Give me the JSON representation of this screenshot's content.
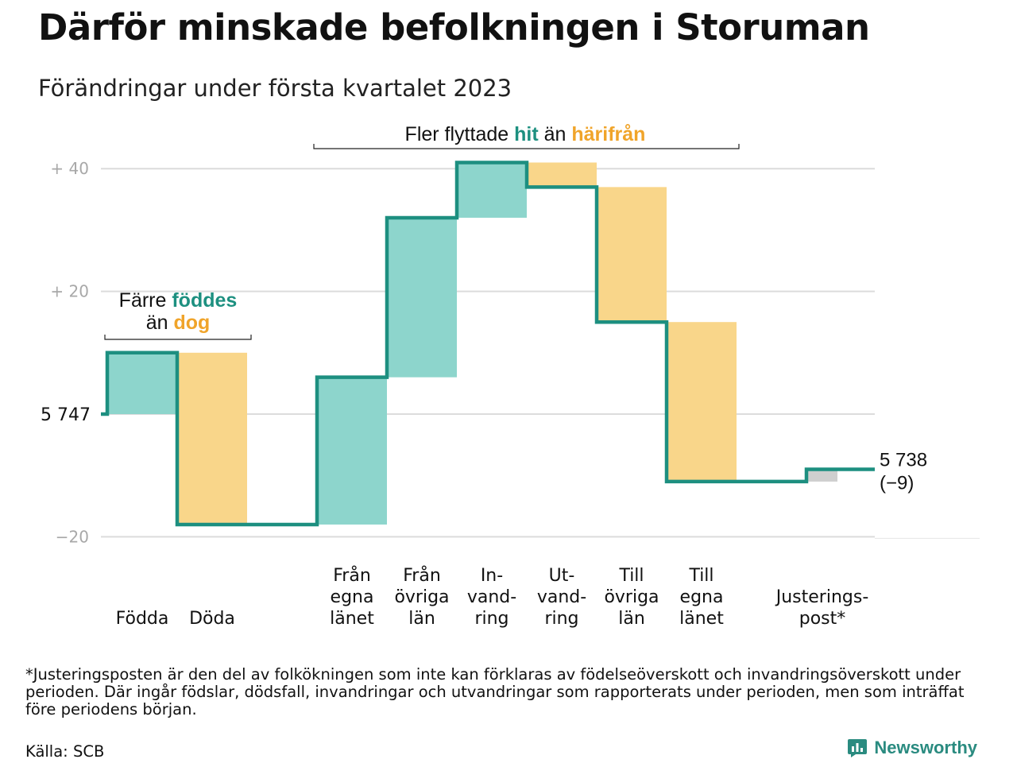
{
  "title": "Därför minskade befolkningen i Storuman",
  "subtitle": "Förändringar under första kvartalet 2023",
  "colors": {
    "increase": "#8dd5cc",
    "decrease": "#f9d68a",
    "adjustment": "#cfcfcf",
    "line": "#1d8f80",
    "accent_teal": "#1d9080",
    "accent_orange": "#f0a42a",
    "grid": "#dcdcdc",
    "tick": "#a8a8a8"
  },
  "annotations": {
    "births": {
      "line1": "Färre",
      "teal": "föddes",
      "line2": "än",
      "orange": "dog"
    },
    "migration": {
      "before": "Fler flyttade",
      "teal": "hit",
      "middle": "än",
      "orange": "härifrån"
    }
  },
  "footnote": "*Justeringsposten är den del av folkökningen som inte kan förklaras av födelseöverskott och invandringsöverskott under perioden. Där ingår födslar, dödsfall, invandringar och utvandringar som rapporterats under perioden, men som inträffat före periodens början.",
  "source": "Källa: SCB",
  "brand": "Newsworthy",
  "chart_data": {
    "type": "waterfall",
    "start": {
      "value": 5747,
      "label": "5 747"
    },
    "end": {
      "value": 5738,
      "label": "5 738",
      "change_label": "(−9)"
    },
    "y_ticks": [
      {
        "value": 40,
        "label": "+ 40"
      },
      {
        "value": 20,
        "label": "+ 20"
      },
      {
        "value": 0,
        "label": "5 747"
      },
      {
        "value": -20,
        "label": "−20"
      }
    ],
    "ylim": [
      -20,
      40
    ],
    "steps": [
      {
        "label": [
          "Födda"
        ],
        "change": 10,
        "kind": "increase"
      },
      {
        "label": [
          "Döda"
        ],
        "change": -28,
        "kind": "decrease"
      },
      {
        "label": [],
        "change": 0,
        "kind": "gap"
      },
      {
        "label": [
          "Från",
          "egna",
          "länet"
        ],
        "change": 24,
        "kind": "increase"
      },
      {
        "label": [
          "Från",
          "övriga",
          "län"
        ],
        "change": 26,
        "kind": "increase"
      },
      {
        "label": [
          "In-",
          "vand-",
          "ring"
        ],
        "change": 9,
        "kind": "increase"
      },
      {
        "label": [
          "Ut-",
          "vand-",
          "ring"
        ],
        "change": -4,
        "kind": "decrease"
      },
      {
        "label": [
          "Till",
          "övriga",
          "län"
        ],
        "change": -22,
        "kind": "decrease"
      },
      {
        "label": [
          "Till",
          "egna",
          "länet"
        ],
        "change": -26,
        "kind": "decrease"
      },
      {
        "label": [],
        "change": 0,
        "kind": "gap"
      },
      {
        "label": [
          "Justerings-",
          "post*"
        ],
        "change": 2,
        "kind": "adjustment"
      }
    ]
  }
}
